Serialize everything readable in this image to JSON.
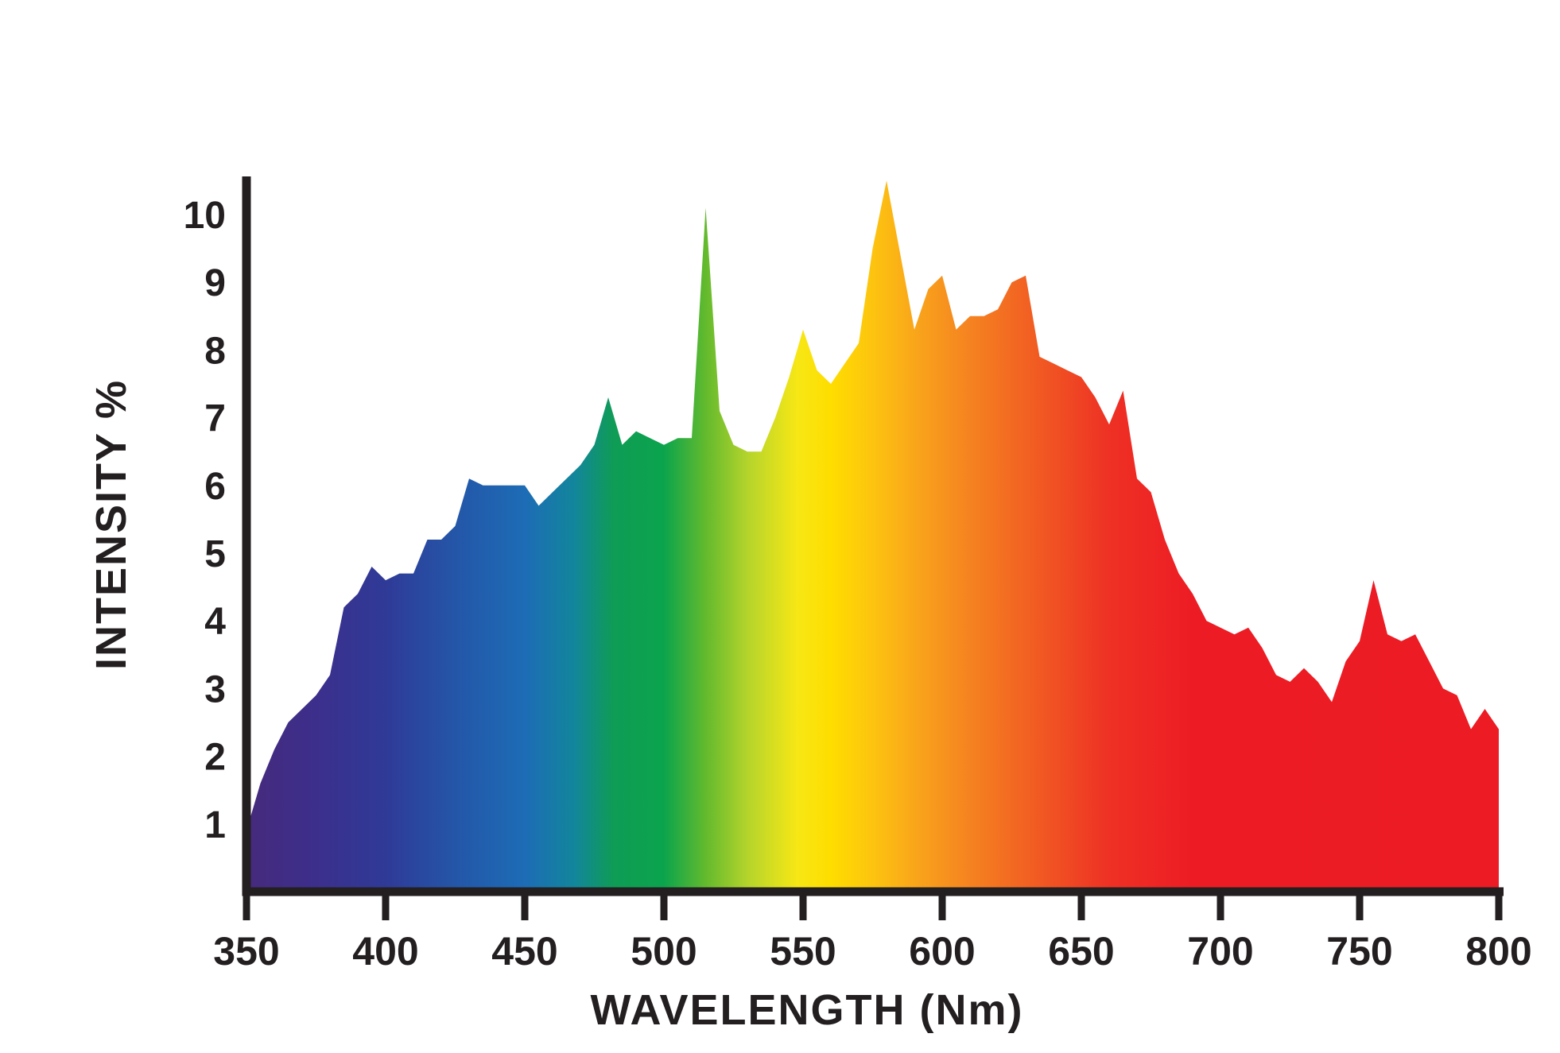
{
  "chart_data": {
    "type": "area",
    "title": "",
    "xlabel": "WAVELENGTH (Nm)",
    "ylabel": "INTENSITY %",
    "xlim": [
      350,
      800
    ],
    "ylim": [
      0,
      10.5
    ],
    "grid": false,
    "legend": "none",
    "background_color": "#ffffff",
    "axis_color": "#231f20",
    "text_color": "#231f20",
    "x_ticks": [
      350,
      400,
      450,
      500,
      550,
      600,
      650,
      700,
      750,
      800
    ],
    "y_ticks": [
      1,
      2,
      3,
      4,
      5,
      6,
      7,
      8,
      9,
      10
    ],
    "x": [
      350,
      355,
      360,
      365,
      370,
      375,
      380,
      385,
      390,
      395,
      400,
      405,
      410,
      415,
      420,
      425,
      430,
      435,
      440,
      445,
      450,
      455,
      460,
      465,
      470,
      475,
      480,
      485,
      490,
      495,
      500,
      505,
      510,
      515,
      520,
      525,
      530,
      535,
      540,
      545,
      550,
      555,
      560,
      565,
      570,
      575,
      580,
      585,
      590,
      595,
      600,
      605,
      610,
      615,
      620,
      625,
      630,
      635,
      640,
      645,
      650,
      655,
      660,
      665,
      670,
      675,
      680,
      685,
      690,
      695,
      700,
      705,
      710,
      715,
      720,
      725,
      730,
      735,
      740,
      745,
      750,
      755,
      760,
      765,
      770,
      775,
      780,
      785,
      790,
      795,
      800
    ],
    "values": [
      0.9,
      1.6,
      2.1,
      2.5,
      2.7,
      2.9,
      3.2,
      4.2,
      4.4,
      4.8,
      4.6,
      4.7,
      4.7,
      5.2,
      5.2,
      5.4,
      6.1,
      6.0,
      6.0,
      6.0,
      6.0,
      5.7,
      5.9,
      6.1,
      6.3,
      6.6,
      7.3,
      6.6,
      6.8,
      6.7,
      6.6,
      6.7,
      6.7,
      10.1,
      7.1,
      6.6,
      6.5,
      6.5,
      7.0,
      7.6,
      8.3,
      7.7,
      7.5,
      7.8,
      8.1,
      9.5,
      10.5,
      9.4,
      8.3,
      8.9,
      9.1,
      8.3,
      8.5,
      8.5,
      8.6,
      9.0,
      9.1,
      7.9,
      7.8,
      7.7,
      7.6,
      7.3,
      6.9,
      7.4,
      6.1,
      5.9,
      5.2,
      4.7,
      4.4,
      4.0,
      3.9,
      3.8,
      3.9,
      3.6,
      3.2,
      3.1,
      3.3,
      3.1,
      2.8,
      3.4,
      3.7,
      4.6,
      3.8,
      3.7,
      3.8,
      3.4,
      3.0,
      2.9,
      2.4,
      2.7,
      2.4
    ],
    "fill_style": "spectrum-gradient",
    "gradient_stops": [
      {
        "at": 350,
        "color": "#462a7c"
      },
      {
        "at": 375,
        "color": "#3c2f8c"
      },
      {
        "at": 400,
        "color": "#2f3a97"
      },
      {
        "at": 425,
        "color": "#2456a8"
      },
      {
        "at": 450,
        "color": "#1d6cb5"
      },
      {
        "at": 468,
        "color": "#12869b"
      },
      {
        "at": 482,
        "color": "#0f9c55"
      },
      {
        "at": 500,
        "color": "#0ba44d"
      },
      {
        "at": 515,
        "color": "#63ba2d"
      },
      {
        "at": 530,
        "color": "#b4d42c"
      },
      {
        "at": 548,
        "color": "#f7e715"
      },
      {
        "at": 560,
        "color": "#fedd00"
      },
      {
        "at": 575,
        "color": "#fdc40f"
      },
      {
        "at": 590,
        "color": "#f9a61a"
      },
      {
        "at": 605,
        "color": "#f68b1f"
      },
      {
        "at": 622,
        "color": "#f36f21"
      },
      {
        "at": 640,
        "color": "#f05123"
      },
      {
        "at": 660,
        "color": "#ee3124"
      },
      {
        "at": 690,
        "color": "#ed1c24"
      },
      {
        "at": 800,
        "color": "#ec1b24"
      }
    ]
  }
}
